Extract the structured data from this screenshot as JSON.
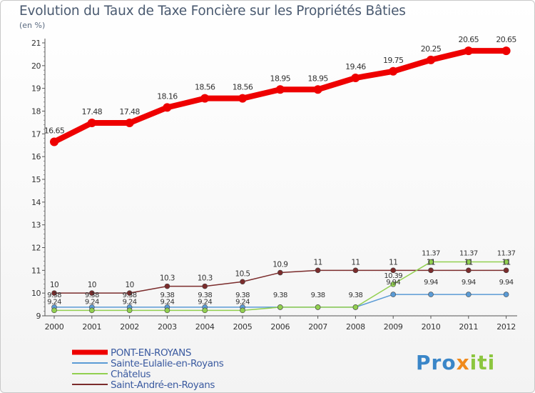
{
  "chart_data": {
    "type": "line",
    "title": "Evolution du Taux de Taxe Foncière sur les Propriétés Bâties",
    "ylabel": "(en %)",
    "xlabel": "",
    "ylim": [
      9,
      21
    ],
    "yticks": [
      "9",
      "10",
      "11",
      "12",
      "13",
      "14",
      "15",
      "16",
      "17",
      "18",
      "19",
      "20",
      "21"
    ],
    "categories": [
      "2000",
      "2001",
      "2002",
      "2003",
      "2004",
      "2005",
      "2006",
      "2007",
      "2008",
      "2009",
      "2010",
      "2011",
      "2012"
    ],
    "legend_position": "bottom-left",
    "series": [
      {
        "name": "PONT-EN-ROYANS",
        "color": "#ee0000",
        "values": [
          16.65,
          17.48,
          17.48,
          18.16,
          18.56,
          18.56,
          18.95,
          18.95,
          19.46,
          19.75,
          20.25,
          20.65,
          20.65
        ],
        "labels": [
          "16.65",
          "17.48",
          "17.48",
          "18.16",
          "18.56",
          "18.56",
          "18.95",
          "18.95",
          "19.46",
          "19.75",
          "20.25",
          "20.65",
          "20.65"
        ]
      },
      {
        "name": "Sainte-Eulalie-en-Royans",
        "color": "#5b9bd5",
        "values": [
          9.38,
          9.38,
          9.38,
          9.38,
          9.38,
          9.38,
          9.38,
          9.38,
          9.38,
          9.94,
          9.94,
          9.94,
          9.94
        ],
        "labels": [
          "9.38",
          "9.38",
          "9.38",
          "9.38",
          "9.38",
          "9.38",
          "9.38",
          "9.38",
          "9.38",
          "9.94",
          "9.94",
          "9.94",
          "9.94"
        ]
      },
      {
        "name": "Châtelus",
        "color": "#92d050",
        "values": [
          9.24,
          9.24,
          9.24,
          9.24,
          9.24,
          9.24,
          9.38,
          9.38,
          9.38,
          10.39,
          11.37,
          11.37,
          11.37
        ],
        "labels": [
          "9.24",
          "9.24",
          "9.24",
          "9.24",
          "9.24",
          "9.24",
          "",
          "",
          "",
          "10.39",
          "11.37",
          "11.37",
          "11.37"
        ]
      },
      {
        "name": "Saint-André-en-Royans",
        "color": "#7b2c2c",
        "values": [
          10,
          10,
          10,
          10.3,
          10.3,
          10.5,
          10.9,
          11,
          11,
          11,
          11,
          11,
          11
        ],
        "labels": [
          "10",
          "10",
          "10",
          "10.3",
          "10.3",
          "10.5",
          "10.9",
          "11",
          "11",
          "11",
          "11",
          "11",
          "11"
        ]
      }
    ]
  },
  "branding": {
    "parts": [
      "Pro",
      "x",
      "iti"
    ]
  }
}
